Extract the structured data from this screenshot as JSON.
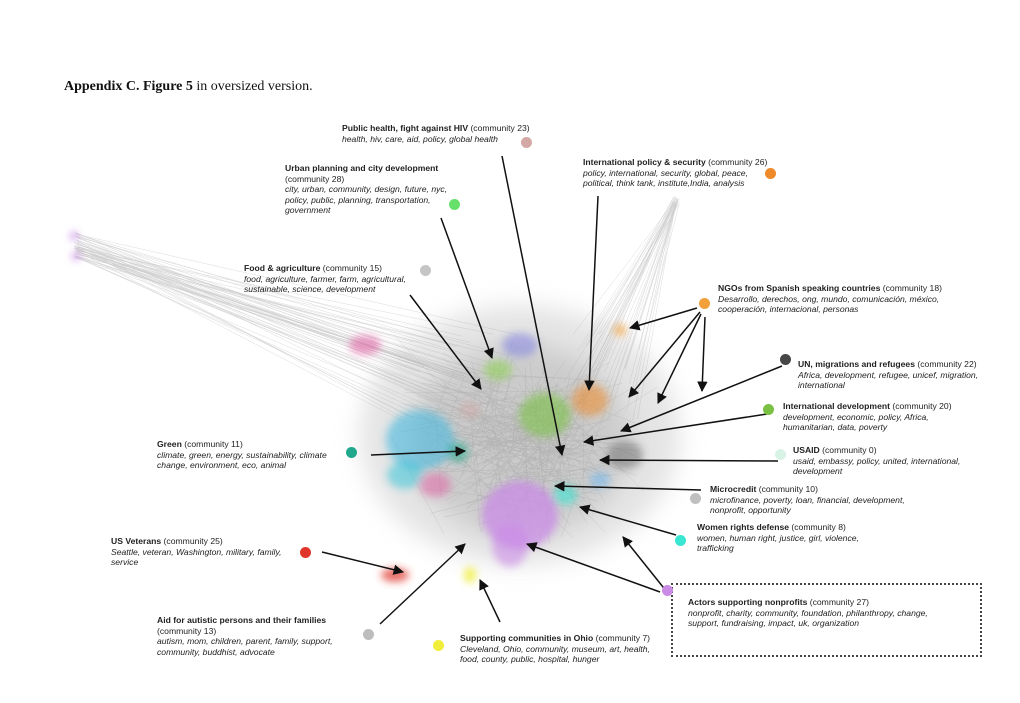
{
  "caption": {
    "bold": "Appendix C. Figure 5",
    "rest": " in oversized version."
  },
  "communities": [
    {
      "id": "c23",
      "title": "Public health, fight against HIV",
      "community": "(community 23)",
      "keywords": [
        "health, hiv, care, aid, policy, global health"
      ],
      "color": "#d4a9a5"
    },
    {
      "id": "c28",
      "title": "Urban planning and city development",
      "community": "(community 28)",
      "keywords": [
        "city, urban, community, design, future, nyc,",
        "policy, public, planning, transportation,",
        "government"
      ],
      "color": "#66e06a"
    },
    {
      "id": "c26",
      "title": "International policy & security",
      "community": "(community 26)",
      "keywords": [
        "policy, international, security, global, peace,",
        "political, think tank, institute,India, analysis"
      ],
      "color": "#ef8a2a"
    },
    {
      "id": "c15",
      "title": "Food & agriculture",
      "community": "(community 15)",
      "keywords": [
        "food, agriculture, farmer, farm, agricultural,",
        "sustainable, science, development"
      ],
      "color": "#c5c5c5"
    },
    {
      "id": "c18",
      "title": "NGOs from Spanish speaking countries",
      "community": "(community 18)",
      "keywords": [
        "Desarrollo,   derechos,   ong,   mundo,   comunicación,   méxico,",
        "cooperación, internacional, personas"
      ],
      "color": "#f2a13a"
    },
    {
      "id": "c22",
      "title": "UN, migrations and refugees",
      "community": "(community 22)",
      "keywords": [
        "Africa, development, refugee, unicef, migration,",
        "international"
      ],
      "color": "#474747"
    },
    {
      "id": "c20",
      "title": "International development",
      "community": "(community 20)",
      "keywords": [
        "development, economic, policy, Africa,",
        "humanitarian, data, poverty"
      ],
      "color": "#7ac143"
    },
    {
      "id": "c11",
      "title": "Green",
      "community": "(community 11)",
      "keywords": [
        "climate, green, energy, sustainability, climate",
        "change, environment, eco, animal"
      ],
      "color": "#1fa88c"
    },
    {
      "id": "c0",
      "title": "USAID",
      "community": "(community 0)",
      "keywords": [
        "usaid, embassy, policy, united, international,",
        "development"
      ],
      "color": "#d9f2e6"
    },
    {
      "id": "c10",
      "title": "Microcredit",
      "community": "(community 10)",
      "keywords": [
        "microfinance, poverty, loan, financial, development,",
        "nonprofit, opportunity"
      ],
      "color": "#c0c0c0"
    },
    {
      "id": "c8",
      "title": "Women rights defense",
      "community": "(community 8)",
      "keywords": [
        "women, human right, justice, girl, violence,",
        "trafficking"
      ],
      "color": "#39e6d2"
    },
    {
      "id": "c25",
      "title": "US Veterans",
      "community": "(community 25)",
      "keywords": [
        "Seattle, veteran, Washington, military, family,",
        "service"
      ],
      "color": "#e0352b"
    },
    {
      "id": "c27",
      "title": "Actors supporting nonprofits",
      "community": "(community 27)",
      "keywords": [
        "nonprofit, charity, community, foundation, philanthropy, change,",
        "support, fundraising, impact, uk, organization"
      ],
      "color": "#c98be6"
    },
    {
      "id": "c13",
      "title": "Aid for autistic persons and their families",
      "community": "(community 13)",
      "keywords": [
        "autism, mom, children, parent, family, support,",
        "community, buddhist, advocate"
      ],
      "color": "#bdbdbd"
    },
    {
      "id": "c7",
      "title": "Supporting communities in Ohio",
      "community": "(community 7)",
      "keywords": [
        "Cleveland, Ohio, community, museum, art, health,",
        "food, county, public, hospital, hunger"
      ],
      "color": "#f0ee3a"
    }
  ]
}
